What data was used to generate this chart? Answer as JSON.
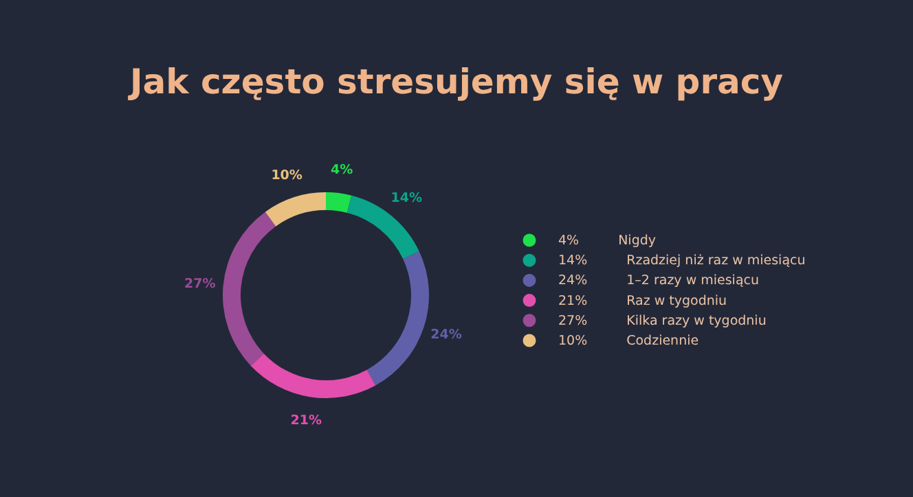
{
  "chart_data": {
    "type": "donut",
    "title": "Jak często stresujemy się w pracy",
    "categories": [
      "Nigdy",
      "Rzadziej niż raz w miesiącu",
      "1–2 razy w miesiącu",
      "Raz w tygodniu",
      "Kilka razy w tygodniu",
      "Codziennie"
    ],
    "values": [
      4,
      14,
      24,
      21,
      27,
      10
    ],
    "value_labels": [
      "4%",
      "14%",
      "24%",
      "21%",
      "27%",
      "10%"
    ],
    "colors": [
      "#1ee04c",
      "#0aa58a",
      "#6060aa",
      "#e24fae",
      "#9b4c96",
      "#e9c07f"
    ],
    "legend": "right"
  }
}
